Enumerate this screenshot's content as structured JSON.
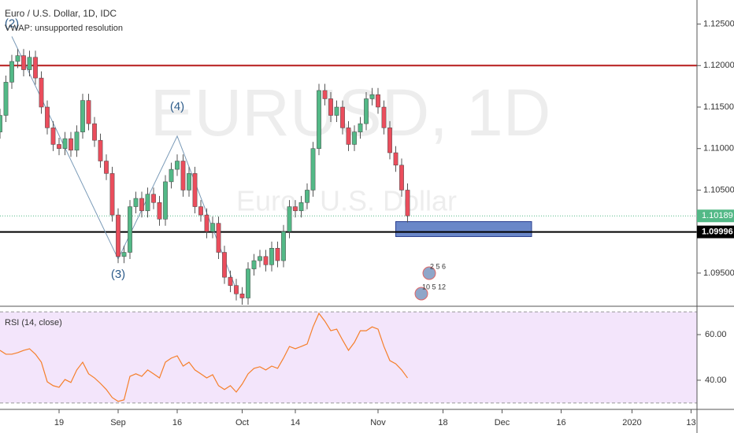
{
  "chart_data": {
    "type": "candlestick",
    "title": "Euro / U.S. Dollar, 1D, IDC",
    "subtitle": "VWAP: unsupported resolution",
    "watermark": "EURUSD, 1D",
    "watermark_sub": "Euro / U.S. Dollar",
    "up_color": "#53b987",
    "down_color": "#eb4d5c",
    "open": [
      1.112,
      1.114,
      1.118,
      1.1205,
      1.1212,
      1.1195,
      1.121,
      1.1185,
      1.115,
      1.1125,
      1.1105,
      1.11,
      1.1112,
      1.1098,
      1.112,
      1.1158,
      1.113,
      1.111,
      1.1085,
      1.107,
      1.102,
      1.097,
      1.0975,
      1.103,
      1.104,
      1.1025,
      1.1045,
      1.1035,
      1.1015,
      1.106,
      1.1075,
      1.1085,
      1.105,
      1.107,
      1.103,
      1.102,
      1.1,
      1.101,
      1.0975,
      1.0945,
      1.0935,
      1.0925,
      1.092,
      1.0955,
      1.0965,
      1.097,
      1.096,
      1.098,
      1.0965,
      1.1,
      1.103,
      1.1025,
      1.1035,
      1.105,
      1.11,
      1.117,
      1.116,
      1.114,
      1.115,
      1.1125,
      1.1105,
      1.112,
      1.113,
      1.116,
      1.1165,
      1.115,
      1.1125,
      1.1095,
      1.108,
      1.105
    ],
    "high": [
      1.1148,
      1.1188,
      1.1213,
      1.122,
      1.122,
      1.1218,
      1.1218,
      1.1193,
      1.1158,
      1.1133,
      1.1113,
      1.112,
      1.112,
      1.1128,
      1.1166,
      1.1166,
      1.1138,
      1.1118,
      1.1093,
      1.1078,
      1.1028,
      1.0983,
      1.1038,
      1.1048,
      1.1048,
      1.1053,
      1.1053,
      1.1043,
      1.1068,
      1.1083,
      1.1093,
      1.1093,
      1.1078,
      1.1078,
      1.1038,
      1.1028,
      1.1018,
      1.1018,
      1.0983,
      1.0953,
      1.0943,
      1.0933,
      1.0963,
      1.0973,
      1.0978,
      1.0978,
      1.0988,
      1.0988,
      1.1008,
      1.1038,
      1.1038,
      1.1043,
      1.1058,
      1.1108,
      1.1178,
      1.1178,
      1.1168,
      1.1158,
      1.1158,
      1.1133,
      1.1128,
      1.1138,
      1.1168,
      1.1173,
      1.1173,
      1.1158,
      1.1133,
      1.1103,
      1.1088,
      1.1058
    ],
    "low": [
      1.1112,
      1.1132,
      1.1172,
      1.1197,
      1.1187,
      1.1187,
      1.1177,
      1.1142,
      1.1117,
      1.1097,
      1.1092,
      1.1092,
      1.109,
      1.109,
      1.1112,
      1.1122,
      1.1102,
      1.1077,
      1.1062,
      1.1012,
      1.0962,
      1.0962,
      1.0967,
      1.1022,
      1.1017,
      1.1017,
      1.1027,
      1.1007,
      1.1007,
      1.1052,
      1.1067,
      1.1042,
      1.1042,
      1.1022,
      1.1012,
      1.0992,
      1.0992,
      1.0967,
      1.0937,
      1.0927,
      1.0917,
      1.0912,
      1.0912,
      1.0947,
      1.0957,
      1.0952,
      1.0952,
      1.0957,
      1.0957,
      1.0992,
      1.1017,
      1.1017,
      1.1027,
      1.1042,
      1.1092,
      1.1152,
      1.1132,
      1.1132,
      1.1117,
      1.1097,
      1.1097,
      1.1112,
      1.1122,
      1.1152,
      1.1142,
      1.1117,
      1.1087,
      1.1072,
      1.1042,
      1.1011
    ],
    "close": [
      1.114,
      1.118,
      1.1205,
      1.1212,
      1.1195,
      1.121,
      1.1185,
      1.115,
      1.1125,
      1.1105,
      1.11,
      1.1112,
      1.1098,
      1.112,
      1.1158,
      1.113,
      1.111,
      1.1085,
      1.107,
      1.102,
      1.097,
      1.0975,
      1.103,
      1.104,
      1.1025,
      1.1045,
      1.1035,
      1.1015,
      1.106,
      1.1075,
      1.1085,
      1.105,
      1.107,
      1.103,
      1.102,
      1.1,
      1.101,
      1.0975,
      1.0945,
      1.0935,
      1.0925,
      1.092,
      1.0955,
      1.0965,
      1.097,
      1.096,
      1.098,
      1.0965,
      1.1,
      1.103,
      1.1025,
      1.1035,
      1.105,
      1.11,
      1.117,
      1.116,
      1.114,
      1.115,
      1.1125,
      1.1105,
      1.112,
      1.113,
      1.116,
      1.1165,
      1.115,
      1.1125,
      1.1095,
      1.108,
      1.105,
      1.1019
    ],
    "xlim": [
      0,
      118
    ],
    "xticks": [
      {
        "value": 10,
        "label": "19"
      },
      {
        "value": 20,
        "label": "Sep"
      },
      {
        "value": 30,
        "label": "16"
      },
      {
        "value": 41,
        "label": "Oct"
      },
      {
        "value": 50,
        "label": "14"
      },
      {
        "value": 64,
        "label": "Nov"
      },
      {
        "value": 75,
        "label": "18"
      },
      {
        "value": 85,
        "label": "Dec"
      },
      {
        "value": 95,
        "label": "16"
      },
      {
        "value": 107,
        "label": "2020"
      },
      {
        "value": 117,
        "label": "13"
      }
    ],
    "ylim": [
      1.0911,
      1.1279
    ],
    "yticks": [
      {
        "value": 1.095,
        "label": "1.09500"
      },
      {
        "value": 1.105,
        "label": "1.10500"
      },
      {
        "value": 1.11,
        "label": "1.11000"
      },
      {
        "value": 1.115,
        "label": "1.11500"
      },
      {
        "value": 1.12,
        "label": "1.12000"
      },
      {
        "value": 1.125,
        "label": "1.12500"
      }
    ],
    "last_price": 1.10189,
    "last_price_color": "#53b987",
    "hlines": [
      {
        "price": 1.12,
        "color": "#b71c1c"
      },
      {
        "price": 1.09996,
        "color": "#000000"
      }
    ],
    "zone": {
      "x": [
        67,
        90
      ],
      "y": [
        1.0994,
        1.1012
      ],
      "color": "#6a87c8"
    },
    "wave": {
      "x": [
        2,
        20,
        30,
        40
      ],
      "y": [
        1.1235,
        1.0967,
        1.1115,
        1.093
      ],
      "labels": [
        "(2)",
        "(3)",
        "(4)"
      ],
      "label_y": [
        1.125,
        1.0948,
        1.115
      ],
      "color": "#7b9bb8"
    },
    "events": [
      "2 5 6",
      "10 5 12"
    ],
    "rsi": {
      "title": "RSI (14, close)",
      "color": "#f57f2a",
      "values": [
        53.1,
        51.4,
        51.4,
        52.1,
        53.1,
        53.8,
        51.4,
        47.9,
        39.3,
        37.6,
        36.9,
        40.3,
        39.0,
        44.5,
        47.9,
        42.8,
        41.0,
        38.6,
        35.9,
        32.4,
        30.7,
        31.4,
        41.7,
        42.8,
        41.7,
        44.5,
        42.8,
        41.0,
        47.9,
        49.7,
        50.7,
        46.2,
        47.9,
        44.5,
        42.8,
        41.0,
        42.4,
        37.6,
        35.9,
        37.6,
        34.8,
        38.3,
        42.8,
        45.2,
        45.9,
        44.5,
        46.2,
        45.2,
        49.7,
        54.8,
        53.8,
        54.8,
        55.9,
        63.4,
        69.3,
        65.9,
        61.7,
        62.4,
        57.6,
        53.1,
        56.6,
        61.7,
        61.7,
        63.4,
        62.4,
        54.8,
        48.6,
        47.2,
        44.5,
        41.0
      ],
      "ylim": [
        27.2,
        72.1
      ],
      "yticks": [
        {
          "value": 40,
          "label": "40.00"
        },
        {
          "value": 60,
          "label": "60.00"
        }
      ],
      "band": [
        30,
        70
      ]
    }
  }
}
